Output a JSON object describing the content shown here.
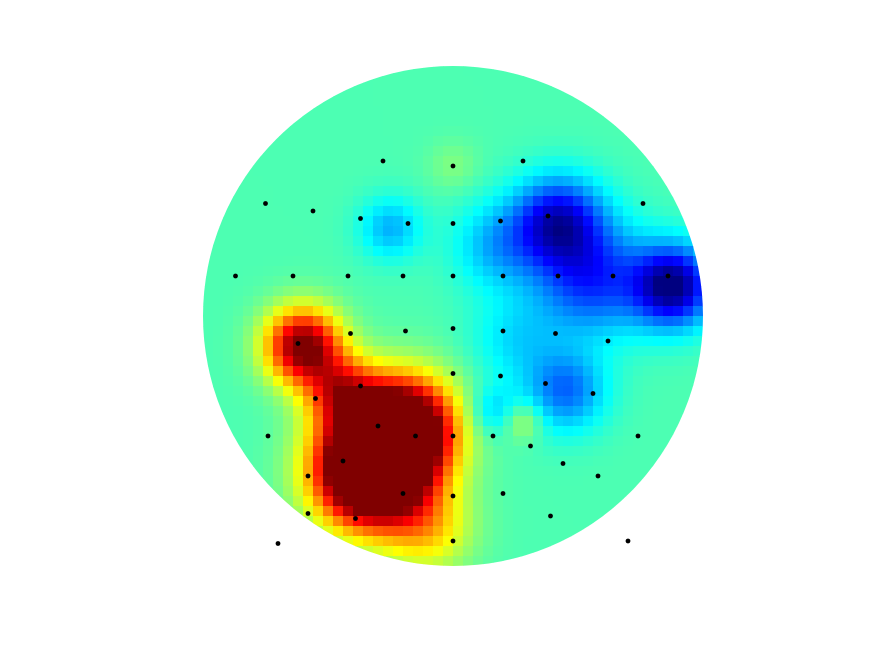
{
  "chart_data": {
    "type": "heatmap",
    "subtype": "scalp-topography",
    "title": "",
    "colormap": "jet",
    "colorbar": false,
    "grid": false,
    "xlim": [
      -1,
      1
    ],
    "ylim": [
      -1,
      1
    ],
    "background": "#ffffff",
    "electrode_color": "#000000",
    "baseline_value": 0.45,
    "electrodes": [
      {
        "x": -0.28,
        "y": 0.62
      },
      {
        "x": 0.0,
        "y": 0.6
      },
      {
        "x": 0.28,
        "y": 0.62
      },
      {
        "x": -0.75,
        "y": 0.45
      },
      {
        "x": -0.56,
        "y": 0.42
      },
      {
        "x": -0.37,
        "y": 0.39
      },
      {
        "x": -0.18,
        "y": 0.37
      },
      {
        "x": 0.0,
        "y": 0.37
      },
      {
        "x": 0.19,
        "y": 0.38
      },
      {
        "x": 0.38,
        "y": 0.4
      },
      {
        "x": 0.76,
        "y": 0.45
      },
      {
        "x": -0.87,
        "y": 0.16
      },
      {
        "x": -0.64,
        "y": 0.16
      },
      {
        "x": -0.42,
        "y": 0.16
      },
      {
        "x": -0.2,
        "y": 0.16
      },
      {
        "x": 0.0,
        "y": 0.16
      },
      {
        "x": 0.2,
        "y": 0.16
      },
      {
        "x": 0.42,
        "y": 0.16
      },
      {
        "x": 0.64,
        "y": 0.16
      },
      {
        "x": 0.86,
        "y": 0.16
      },
      {
        "x": -0.62,
        "y": -0.11
      },
      {
        "x": -0.41,
        "y": -0.07
      },
      {
        "x": -0.19,
        "y": -0.06
      },
      {
        "x": 0.0,
        "y": -0.05
      },
      {
        "x": 0.2,
        "y": -0.06
      },
      {
        "x": 0.41,
        "y": -0.07
      },
      {
        "x": 0.62,
        "y": -0.1
      },
      {
        "x": -0.55,
        "y": -0.33
      },
      {
        "x": -0.37,
        "y": -0.28
      },
      {
        "x": 0.0,
        "y": -0.23
      },
      {
        "x": 0.19,
        "y": -0.24
      },
      {
        "x": 0.37,
        "y": -0.27
      },
      {
        "x": 0.56,
        "y": -0.31
      },
      {
        "x": -0.74,
        "y": -0.48
      },
      {
        "x": -0.3,
        "y": -0.44
      },
      {
        "x": -0.15,
        "y": -0.48
      },
      {
        "x": 0.0,
        "y": -0.48
      },
      {
        "x": 0.16,
        "y": -0.48
      },
      {
        "x": 0.31,
        "y": -0.52
      },
      {
        "x": 0.74,
        "y": -0.48
      },
      {
        "x": -0.44,
        "y": -0.58
      },
      {
        "x": 0.44,
        "y": -0.59
      },
      {
        "x": -0.58,
        "y": -0.79
      },
      {
        "x": -0.2,
        "y": -0.71
      },
      {
        "x": 0.0,
        "y": -0.72
      },
      {
        "x": 0.2,
        "y": -0.71
      },
      {
        "x": 0.39,
        "y": -0.8
      },
      {
        "x": -0.39,
        "y": -0.81
      },
      {
        "x": 0.0,
        "y": -0.9
      },
      {
        "x": -0.58,
        "y": -0.64
      },
      {
        "x": 0.58,
        "y": -0.64
      },
      {
        "x": 0.7,
        "y": -0.9
      },
      {
        "x": -0.7,
        "y": -0.91
      }
    ],
    "field_sources": [
      {
        "x": -0.33,
        "y": -0.62,
        "value": 1.0,
        "spread": 0.045
      },
      {
        "x": -0.2,
        "y": -0.45,
        "value": 0.78,
        "spread": 0.04
      },
      {
        "x": -0.6,
        "y": -0.12,
        "value": 0.58,
        "spread": 0.022
      },
      {
        "x": -0.45,
        "y": -0.3,
        "value": 0.35,
        "spread": 0.02
      },
      {
        "x": -0.1,
        "y": -0.85,
        "value": 0.2,
        "spread": 0.03
      },
      {
        "x": 0.88,
        "y": 0.12,
        "value": -0.45,
        "spread": 0.025
      },
      {
        "x": 0.42,
        "y": 0.38,
        "value": -0.35,
        "spread": 0.03
      },
      {
        "x": 0.55,
        "y": 0.15,
        "value": -0.28,
        "spread": 0.05
      },
      {
        "x": 0.45,
        "y": -0.3,
        "value": -0.22,
        "spread": 0.025
      },
      {
        "x": -0.25,
        "y": 0.35,
        "value": -0.15,
        "spread": 0.015
      },
      {
        "x": 0.18,
        "y": 0.28,
        "value": -0.15,
        "spread": 0.03
      },
      {
        "x": 0.25,
        "y": -0.1,
        "value": -0.1,
        "spread": 0.03
      },
      {
        "x": 0.16,
        "y": -0.38,
        "value": -0.12,
        "spread": 0.01
      },
      {
        "x": 0.28,
        "y": -0.42,
        "value": 0.12,
        "spread": 0.006
      },
      {
        "x": 0.0,
        "y": 0.6,
        "value": 0.05,
        "spread": 0.01
      }
    ]
  }
}
